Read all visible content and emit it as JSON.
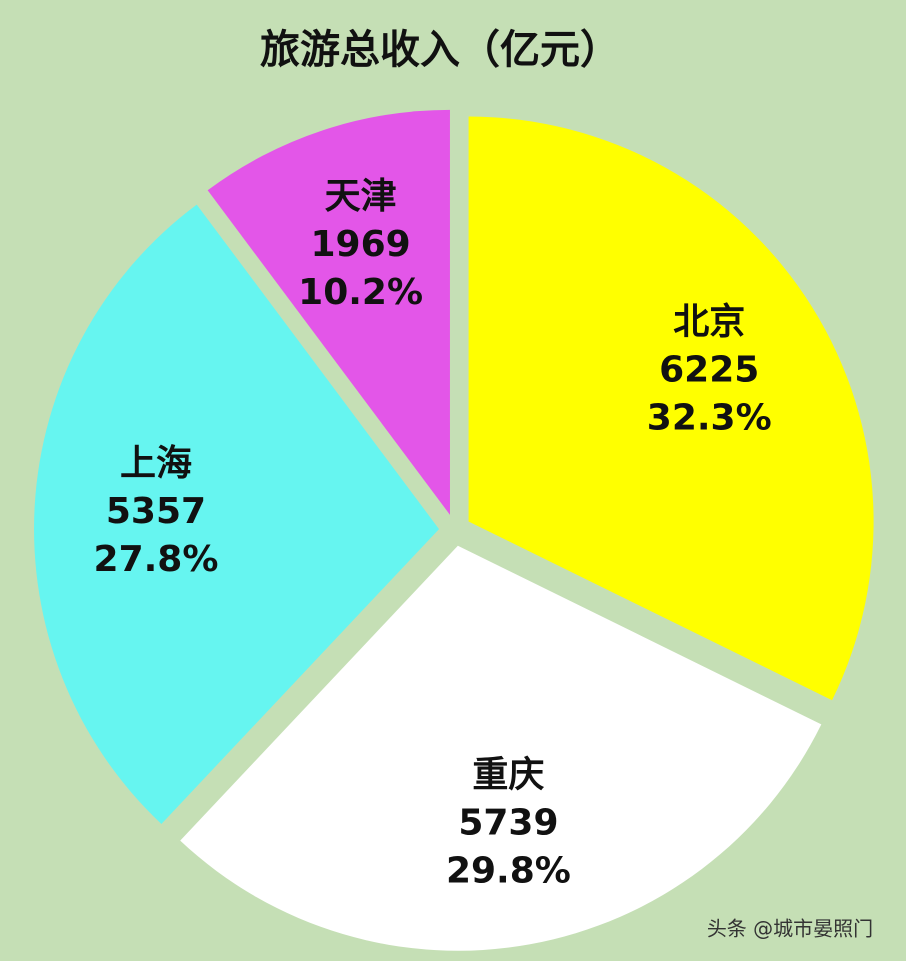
{
  "chart_data": {
    "type": "pie",
    "title": "旅游总收入（亿元）",
    "categories": [
      "北京",
      "重庆",
      "上海",
      "天津"
    ],
    "values": [
      6225,
      5739,
      5357,
      1969
    ],
    "percent_labels": [
      "32.3%",
      "29.8%",
      "27.8%",
      "10.2%"
    ],
    "colors": [
      "#ffff00",
      "#ffffff",
      "#66f5f0",
      "#e356e8"
    ],
    "watermark": "头条 @城市晏照门"
  }
}
